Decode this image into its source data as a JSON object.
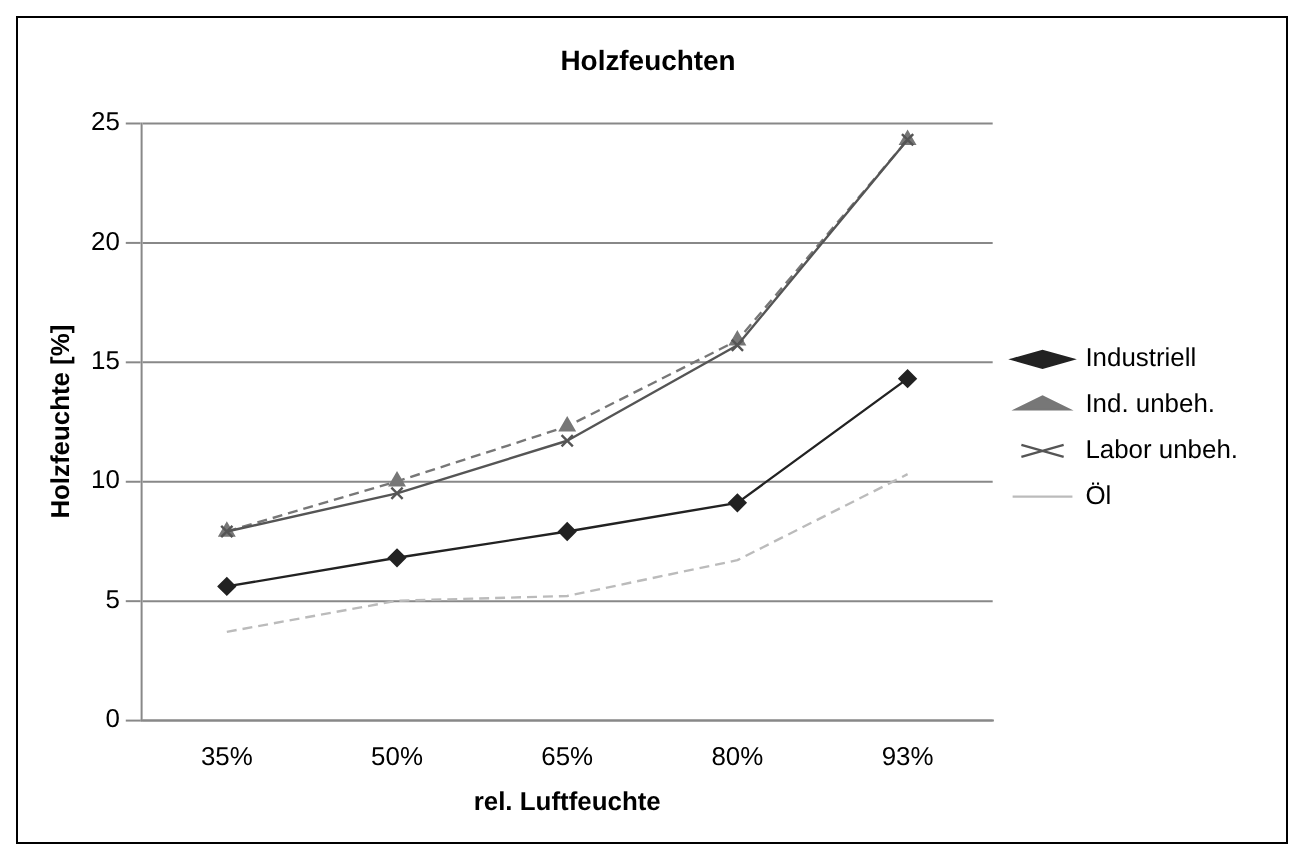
{
  "chart_data": {
    "type": "line",
    "title": "Holzfeuchten",
    "xlabel": "rel. Luftfeuchte",
    "ylabel": "Holzfeuchte [%]",
    "categories": [
      "35%",
      "50%",
      "65%",
      "80%",
      "93%"
    ],
    "series": [
      {
        "name": "Industriell",
        "color": "#222222",
        "marker": "diamond",
        "line_style": "solid",
        "values": [
          5.6,
          6.8,
          7.9,
          9.1,
          14.3
        ]
      },
      {
        "name": "Ind. unbeh.",
        "color": "#777777",
        "marker": "triangle",
        "line_style": "dashed",
        "values": [
          7.9,
          10.0,
          12.3,
          15.9,
          24.3
        ]
      },
      {
        "name": "Labor unbeh.",
        "color": "#555555",
        "marker": "cross",
        "line_style": "solid",
        "values": [
          7.9,
          9.5,
          11.7,
          15.7,
          24.3
        ]
      },
      {
        "name": "Öl",
        "color": "#bbbbbb",
        "marker": "none",
        "line_style": "dashed",
        "values": [
          3.7,
          5.0,
          5.2,
          6.7,
          10.3
        ]
      }
    ],
    "ylim": [
      0,
      25
    ],
    "yticks": [
      0,
      5,
      10,
      15,
      20,
      25
    ],
    "grid": "y",
    "legend": "right"
  }
}
